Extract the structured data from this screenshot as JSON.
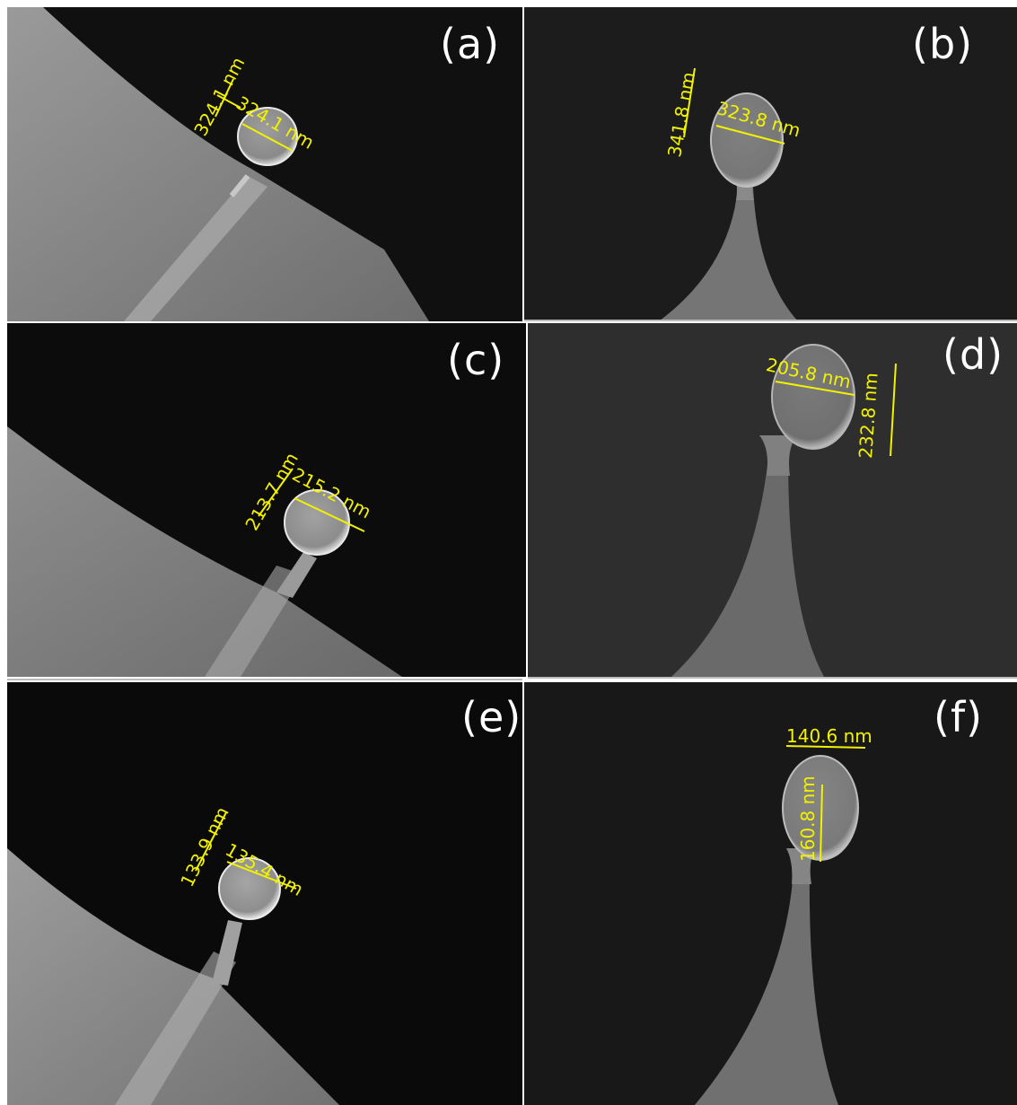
{
  "colors": {
    "annotation": "#f2f200",
    "label": "#ffffff",
    "background": "#0b0b0b"
  },
  "panels": [
    {
      "label": "(a)",
      "measurements": [
        "324.1 nm",
        "324.1 nm"
      ]
    },
    {
      "label": "(b)",
      "measurements": [
        "341.8 nm",
        "323.8 nm"
      ]
    },
    {
      "label": "(c)",
      "measurements": [
        "213.7 nm",
        "215.2 nm"
      ]
    },
    {
      "label": "(d)",
      "measurements": [
        "205.8 nm",
        "232.8 nm"
      ]
    },
    {
      "label": "(e)",
      "measurements": [
        "133.9 nm",
        "135.4 nm"
      ]
    },
    {
      "label": "(f)",
      "measurements": [
        "140.6 nm",
        "160.8 nm"
      ]
    }
  ]
}
